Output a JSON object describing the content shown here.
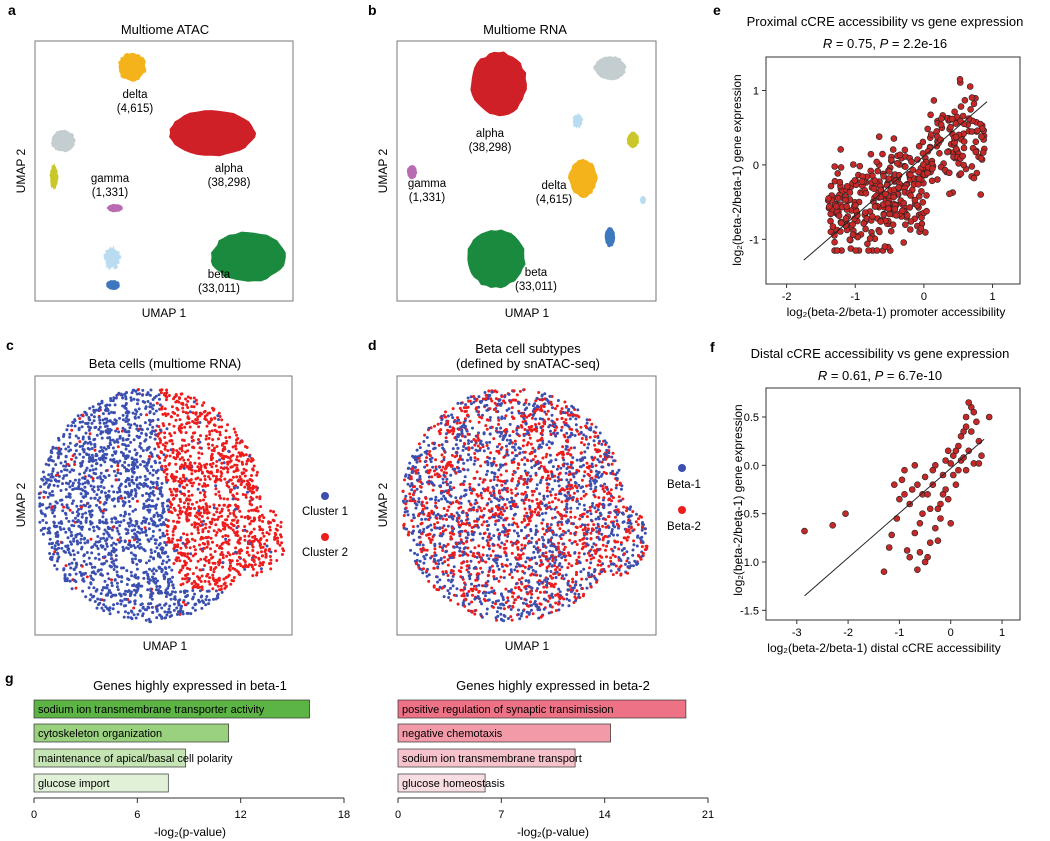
{
  "panels": {
    "a": {
      "label": "a",
      "title": "Multiome ATAC",
      "xlabel": "UMAP 1",
      "ylabel": "UMAP 2",
      "clusters": [
        {
          "name": "delta",
          "count": "(4,615)",
          "color": "#f5b31b"
        },
        {
          "name": "alpha",
          "count": "(38,298)",
          "color": "#cf2027"
        },
        {
          "name": "gamma",
          "count": "(1,331)",
          "color": "#b86bb2"
        },
        {
          "name": "beta",
          "count": "(33,011)",
          "color": "#1a8a3e"
        },
        {
          "name": "",
          "count": "",
          "color": "#c4cdd0"
        },
        {
          "name": "",
          "count": "",
          "color": "#c9c72a"
        },
        {
          "name": "",
          "count": "",
          "color": "#b9dcf0"
        },
        {
          "name": "",
          "count": "",
          "color": "#3f77bf"
        }
      ]
    },
    "b": {
      "label": "b",
      "title": "Multiome RNA",
      "xlabel": "UMAP 1",
      "ylabel": "UMAP 2",
      "clusters": [
        {
          "name": "alpha",
          "count": "(38,298)",
          "color": "#cf2027"
        },
        {
          "name": "gamma",
          "count": "(1,331)",
          "color": "#b86bb2"
        },
        {
          "name": "delta",
          "count": "(4,615)",
          "color": "#f5b31b"
        },
        {
          "name": "beta",
          "count": "(33,011)",
          "color": "#1a8a3e"
        }
      ]
    },
    "c": {
      "label": "c",
      "title": "Beta cells (multiome RNA)",
      "xlabel": "UMAP 1",
      "ylabel": "UMAP 2",
      "legend": [
        {
          "name": "Cluster 1",
          "color": "#3a4fb0"
        },
        {
          "name": "Cluster 2",
          "color": "#ee1c1c"
        }
      ]
    },
    "d": {
      "label": "d",
      "title_line1": "Beta cell subtypes",
      "title_line2": "(defined by snATAC-seq)",
      "xlabel": "UMAP 1",
      "ylabel": "UMAP 2",
      "legend": [
        {
          "name": "Beta-1",
          "color": "#3a4fb0"
        },
        {
          "name": "Beta-2",
          "color": "#ee1c1c"
        }
      ]
    },
    "g": {
      "label": "g"
    }
  },
  "chart_data": [
    {
      "id": "e",
      "type": "scatter",
      "title": "Proximal cCRE accessibility vs gene expression",
      "stats": {
        "r_label": "R",
        "r_value": " = 0.75, ",
        "p_label": "P",
        "p_value": " = 2.2e-16"
      },
      "xlabel": "log₂(beta-2/beta-1) promoter accessibility",
      "ylabel": "log₂(beta-2/beta-1) gene expression",
      "xlim": [
        -2.3,
        1.4
      ],
      "ylim": [
        -1.6,
        1.45
      ],
      "xticks": [
        -2,
        -1,
        0,
        1
      ],
      "yticks": [
        -1,
        0,
        1
      ],
      "point_color": "#c62828",
      "fit_line": {
        "x": [
          -1.75,
          0.92
        ],
        "y": [
          -1.28,
          0.85
        ]
      },
      "n_points": 420,
      "point_groups": [
        {
          "x_range": [
            -1.4,
            0.05
          ],
          "y_center": -0.45,
          "spread": 0.35,
          "n": 300
        },
        {
          "x_range": [
            0.05,
            0.9
          ],
          "y_center": 0.35,
          "spread": 0.3,
          "n": 120
        }
      ]
    },
    {
      "id": "f",
      "type": "scatter",
      "title": "Distal cCRE accessibility vs gene expression",
      "stats": {
        "r_label": "R",
        "r_value": " = 0.61, ",
        "p_label": "P",
        "p_value": " = 6.7e-10"
      },
      "xlabel": "log₂(beta-2/beta-1) distal cCRE accessibility",
      "ylabel": "log₂(beta-2/beta-1) gene expression",
      "xlim": [
        -3.6,
        1.35
      ],
      "ylim": [
        -1.6,
        0.8
      ],
      "xticks": [
        -3,
        -2,
        -1,
        0,
        1
      ],
      "yticks": [
        -1.5,
        -1.0,
        -0.5,
        0.0,
        0.5
      ],
      "point_color": "#c62828",
      "fit_line": {
        "x": [
          -2.85,
          0.65
        ],
        "y": [
          -1.35,
          0.27
        ]
      },
      "points": [
        [
          -2.85,
          -0.68
        ],
        [
          -2.3,
          -0.62
        ],
        [
          -2.05,
          -0.5
        ],
        [
          -1.3,
          -1.1
        ],
        [
          -1.15,
          -0.72
        ],
        [
          -1.05,
          -0.55
        ],
        [
          -1.0,
          -0.35
        ],
        [
          -0.95,
          -0.15
        ],
        [
          -0.9,
          -0.05
        ],
        [
          -0.85,
          -0.88
        ],
        [
          -0.8,
          -0.4
        ],
        [
          -0.75,
          -0.25
        ],
        [
          -0.7,
          0.0
        ],
        [
          -0.65,
          -1.08
        ],
        [
          -0.6,
          -0.6
        ],
        [
          -0.55,
          -0.3
        ],
        [
          -0.5,
          -0.12
        ],
        [
          -0.45,
          -0.95
        ],
        [
          -0.4,
          -0.45
        ],
        [
          -0.35,
          -0.2
        ],
        [
          -0.3,
          0.0
        ],
        [
          -0.25,
          -0.78
        ],
        [
          -0.2,
          -0.55
        ],
        [
          -0.15,
          -0.1
        ],
        [
          -0.1,
          0.05
        ],
        [
          -0.05,
          -0.35
        ],
        [
          0.0,
          -0.6
        ],
        [
          0.05,
          0.1
        ],
        [
          0.1,
          -0.2
        ],
        [
          0.15,
          0.2
        ],
        [
          0.2,
          0.05
        ],
        [
          0.25,
          0.35
        ],
        [
          0.3,
          0.5
        ],
        [
          0.35,
          0.15
        ],
        [
          0.4,
          0.6
        ],
        [
          0.45,
          0.02
        ],
        [
          0.5,
          0.45
        ],
        [
          0.55,
          0.25
        ],
        [
          0.6,
          0.1
        ],
        [
          0.75,
          0.5
        ],
        [
          -0.6,
          -0.9
        ],
        [
          -0.5,
          -1.0
        ],
        [
          -0.4,
          -0.8
        ],
        [
          -0.3,
          -0.65
        ],
        [
          -0.2,
          -0.4
        ],
        [
          -0.1,
          -0.25
        ],
        [
          0.0,
          0.02
        ],
        [
          0.1,
          0.15
        ],
        [
          0.2,
          0.3
        ],
        [
          0.3,
          0.4
        ],
        [
          0.4,
          0.35
        ],
        [
          -0.7,
          -0.7
        ],
        [
          -0.8,
          -0.95
        ],
        [
          -0.55,
          -0.5
        ],
        [
          -0.35,
          -0.05
        ],
        [
          -0.15,
          -0.3
        ],
        [
          0.05,
          -0.1
        ],
        [
          0.25,
          0.08
        ],
        [
          0.45,
          0.55
        ],
        [
          0.35,
          0.65
        ],
        [
          -0.9,
          -0.3
        ],
        [
          -1.1,
          -0.2
        ],
        [
          -0.45,
          -0.3
        ],
        [
          -0.25,
          -0.45
        ],
        [
          0.15,
          -0.05
        ],
        [
          0.55,
          0.02
        ],
        [
          -0.65,
          -0.2
        ],
        [
          -0.05,
          0.15
        ],
        [
          0.3,
          -0.05
        ],
        [
          -1.2,
          -0.85
        ]
      ]
    },
    {
      "id": "g-left",
      "type": "bar",
      "title": "Genes highly expressed in beta-1",
      "xlabel": "-log₂(p-value)",
      "xlim": [
        0,
        18
      ],
      "xticks": [
        0,
        6,
        12,
        18
      ],
      "categories": [
        "sodium ion transmembrane transporter activity",
        "cytoskeleton organization",
        "maintenance of apical/basal cell polarity",
        "glucose import"
      ],
      "values": [
        16.0,
        11.3,
        8.8,
        7.8
      ],
      "colors": [
        "#5cb445",
        "#99d17f",
        "#c5e4b3",
        "#e1f1d8"
      ]
    },
    {
      "id": "g-right",
      "type": "bar",
      "title": "Genes highly expressed in beta-2",
      "xlabel": "-log₂(p-value)",
      "xlim": [
        0,
        21
      ],
      "xticks": [
        0,
        7,
        14,
        21
      ],
      "categories": [
        "positive regulation of synaptic transimission",
        "negative chemotaxis",
        "sodium ion transmembrane transport",
        "glucose homeostasis"
      ],
      "values": [
        19.5,
        14.4,
        12.0,
        5.9
      ],
      "colors": [
        "#ee7286",
        "#f39aa9",
        "#f6c3cc",
        "#f8dde2"
      ]
    }
  ]
}
